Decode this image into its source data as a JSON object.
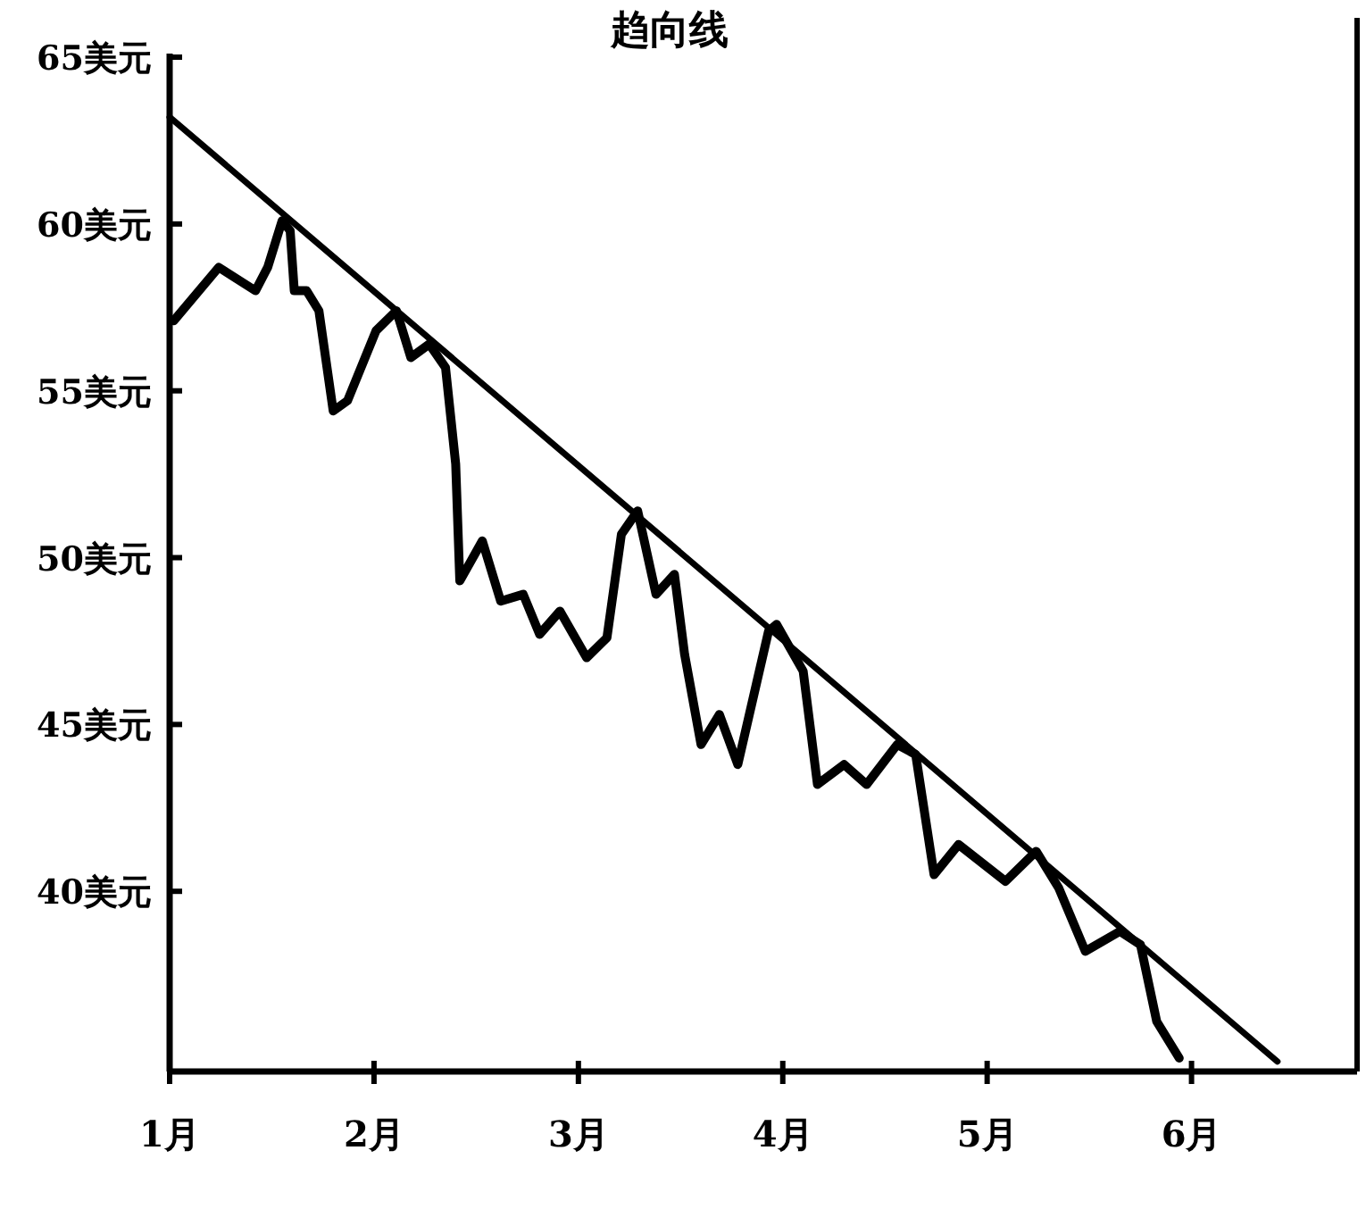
{
  "chart_data": {
    "type": "line",
    "title": "趋向线",
    "xlim": [
      1,
      6.81
    ],
    "xticks": [
      {
        "value": 1,
        "label": "1月"
      },
      {
        "value": 2,
        "label": "2月"
      },
      {
        "value": 3,
        "label": "3月"
      },
      {
        "value": 4,
        "label": "4月"
      },
      {
        "value": 5,
        "label": "5月"
      },
      {
        "value": 6,
        "label": "6月"
      }
    ],
    "ylim": [
      34.6,
      65
    ],
    "yticks": [
      {
        "value": 65,
        "label": "65美元"
      },
      {
        "value": 60,
        "label": "60美元"
      },
      {
        "value": 55,
        "label": "55美元"
      },
      {
        "value": 50,
        "label": "50美元"
      },
      {
        "value": 45,
        "label": "45美元"
      },
      {
        "value": 40,
        "label": "40美元"
      }
    ],
    "grid": false,
    "marker": "none",
    "line_style": "solid",
    "series": [
      {
        "color": "#000000",
        "x": [
          1.02,
          1.24,
          1.42,
          1.48,
          1.55,
          1.59,
          1.61,
          1.67,
          1.73,
          1.8,
          1.87,
          2.01,
          2.11,
          2.18,
          2.27,
          2.35,
          2.4,
          2.42,
          2.53,
          2.62,
          2.73,
          2.81,
          2.91,
          3.04,
          3.14,
          3.21,
          3.29,
          3.38,
          3.47,
          3.52,
          3.6,
          3.69,
          3.78,
          3.93,
          3.97,
          4.1,
          4.17,
          4.3,
          4.41,
          4.56,
          4.65,
          4.74,
          4.86,
          5.09,
          5.24,
          5.35,
          5.48,
          5.65,
          5.75,
          5.83,
          5.94
        ],
        "values": [
          57.1,
          58.7,
          58.0,
          58.7,
          60.1,
          59.8,
          58.0,
          58.0,
          57.4,
          54.4,
          54.7,
          56.8,
          57.4,
          56.0,
          56.4,
          55.7,
          52.8,
          49.3,
          50.5,
          48.7,
          48.9,
          47.7,
          48.4,
          47.0,
          47.6,
          50.7,
          51.4,
          48.9,
          49.5,
          47.1,
          44.4,
          45.3,
          43.8,
          47.8,
          48.0,
          46.6,
          43.2,
          43.8,
          43.2,
          44.4,
          44.1,
          40.5,
          41.4,
          40.3,
          41.2,
          40.1,
          38.2,
          38.8,
          38.4,
          36.1,
          35.0
        ]
      },
      {
        "color": "#000000",
        "x": [
          1,
          6.42
        ],
        "values": [
          63.2,
          34.9
        ]
      }
    ]
  }
}
